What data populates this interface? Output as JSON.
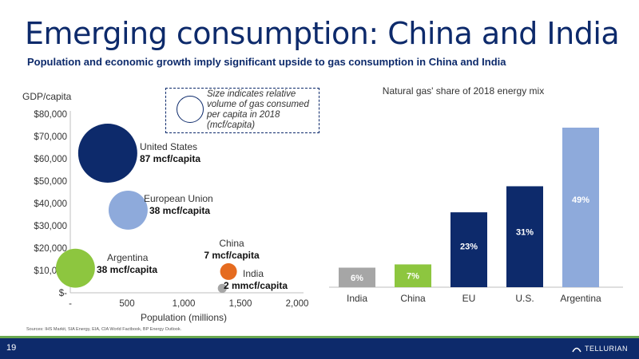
{
  "slide": {
    "title": "Emerging consumption: China and India",
    "subtitle": "Population and economic growth imply significant upside to gas consumption in China and India",
    "legend_note": "Size indicates relative volume of gas consumed per capita in 2018 (mcf/capita)",
    "sources": "Sources: IHS Markit, SIA Energy, EIA, CIA World Factbook, BP Energy Outlook.",
    "page_number": "19",
    "logo_text": "TELLURIAN"
  },
  "chart_data": [
    {
      "type": "scatter",
      "ylabel": "GDP/capita",
      "xlabel": "Population (millions)",
      "xlim": [
        0,
        2000
      ],
      "ylim": [
        0,
        80000
      ],
      "x_ticks": [
        "-",
        "500",
        "1,000",
        "1,500",
        "2,000"
      ],
      "y_ticks": [
        "$-",
        "$10,000",
        "$20,000",
        "$30,000",
        "$40,000",
        "$50,000",
        "$60,000",
        "$70,000",
        "$80,000"
      ],
      "points": [
        {
          "name": "United States",
          "value_label": "87 mcf/capita",
          "x": 330,
          "y": 62500,
          "size": 87,
          "color": "#0d2a6b"
        },
        {
          "name": "European Union",
          "value_label": "38 mcf/capita",
          "x": 510,
          "y": 37000,
          "size": 38,
          "color": "#8eaadb"
        },
        {
          "name": "Argentina",
          "value_label": "38 mcf/capita",
          "x": 45,
          "y": 11000,
          "size": 38,
          "color": "#8dc63f"
        },
        {
          "name": "China",
          "value_label": "7 mcf/capita",
          "x": 1395,
          "y": 9500,
          "size": 7,
          "color": "#e56b1f"
        },
        {
          "name": "India",
          "value_label": "2 mmcf/capita",
          "x": 1340,
          "y": 2000,
          "size": 2,
          "color": "#a6a6a6"
        }
      ]
    },
    {
      "type": "bar",
      "title": "Natural gas' share of 2018 energy mix",
      "categories": [
        "India",
        "China",
        "EU",
        "U.S.",
        "Argentina"
      ],
      "values": [
        6,
        7,
        23,
        31,
        49
      ],
      "labels": [
        "6%",
        "7%",
        "23%",
        "31%",
        "49%"
      ],
      "colors": [
        "#a6a6a6",
        "#8dc63f",
        "#0d2a6b",
        "#0d2a6b",
        "#8eaadb"
      ]
    }
  ]
}
